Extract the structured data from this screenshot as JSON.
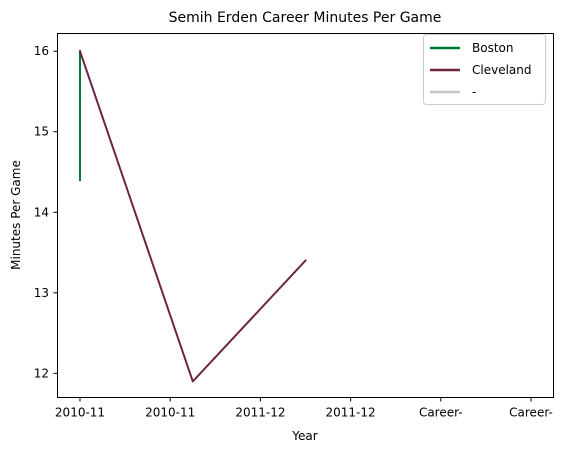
{
  "chart_data": {
    "type": "line",
    "title": "Semih Erden Career Minutes Per Game",
    "xlabel": "Year",
    "ylabel": "Minutes Per Game",
    "categories": [
      "2010-11",
      "2010-11",
      "2011-12",
      "2011-12",
      "Career-",
      "Career-"
    ],
    "yticks": [
      12,
      13,
      14,
      15,
      16
    ],
    "ylim": [
      11.7,
      16.22
    ],
    "grid": false,
    "legend_position": "top-right",
    "series": [
      {
        "name": "Boston",
        "color": "#007A33",
        "points": [
          [
            0,
            14.4
          ],
          [
            0,
            16.0
          ]
        ]
      },
      {
        "name": "Cleveland",
        "color": "#6F263D",
        "points": [
          [
            0,
            16.0
          ],
          [
            1.25,
            11.9
          ],
          [
            2.5,
            13.4
          ]
        ]
      },
      {
        "name": "-",
        "color": "#C4C4C4",
        "points": []
      }
    ]
  }
}
